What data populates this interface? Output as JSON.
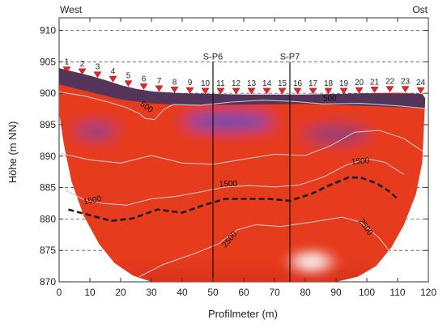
{
  "chart_data": {
    "type": "heatmap",
    "xlabel": "Profilmeter (m)",
    "ylabel": "Höhe (m NN)",
    "xlim": [
      0,
      120
    ],
    "ylim": [
      870,
      912
    ],
    "x_ticks": [
      0,
      10,
      20,
      30,
      40,
      50,
      60,
      70,
      80,
      90,
      100,
      110,
      120
    ],
    "y_ticks": [
      870,
      875,
      880,
      885,
      890,
      895,
      900,
      905,
      910
    ],
    "grid": "horizontal dashed",
    "corner_labels": {
      "left": "West",
      "right": "Ost"
    },
    "boreholes": [
      {
        "label": "S-P6",
        "x": 50,
        "top": 905
      },
      {
        "label": "S-P7",
        "x": 75,
        "top": 905
      }
    ],
    "electrodes": {
      "labels": [
        "1",
        "2",
        "3",
        "4",
        "5",
        "6",
        "7",
        "8",
        "9",
        "10",
        "11",
        "12",
        "13",
        "14",
        "15",
        "16",
        "17",
        "18",
        "19",
        "20",
        "21",
        "22",
        "23",
        "24"
      ],
      "x": [
        2.5,
        7.5,
        12.5,
        17.5,
        22.5,
        27.5,
        32.5,
        37.5,
        42.5,
        47.5,
        52.5,
        57.5,
        62.5,
        67.5,
        72.5,
        77.5,
        82.5,
        87.5,
        92.5,
        97.5,
        102.5,
        107.5,
        112.5,
        117.5
      ],
      "y": [
        903.3,
        903.0,
        902.5,
        901.8,
        901.1,
        900.6,
        900.3,
        900.1,
        900.0,
        899.9,
        899.9,
        899.9,
        899.9,
        899.9,
        899.9,
        899.9,
        899.9,
        899.9,
        899.9,
        900.0,
        900.1,
        900.2,
        900.2,
        900.0
      ]
    },
    "contour_labels": [
      {
        "text": "500",
        "x": 28,
        "y": 897.5,
        "angle": 35
      },
      {
        "text": "500",
        "x": 88,
        "y": 898.8,
        "angle": 0
      },
      {
        "text": "1500",
        "x": 55,
        "y": 885.2,
        "angle": -3
      },
      {
        "text": "1500",
        "x": 98,
        "y": 888.8,
        "angle": -5
      },
      {
        "text": "1500",
        "x": 11,
        "y": 882.6,
        "angle": -12
      },
      {
        "text": "2500",
        "x": 56,
        "y": 876.5,
        "angle": -50
      },
      {
        "text": "2500",
        "x": 99,
        "y": 878.5,
        "angle": 55
      }
    ],
    "boundary_line": {
      "style": "dashed",
      "x": [
        3,
        10,
        17,
        24,
        32,
        40,
        47,
        54,
        60,
        68,
        75,
        82,
        88,
        94,
        98,
        103,
        107,
        110
      ],
      "y": [
        881.5,
        880.6,
        879.7,
        880.1,
        881.5,
        881.0,
        882.2,
        883.2,
        883.2,
        883.2,
        882.9,
        884.0,
        885.4,
        886.6,
        886.6,
        885.7,
        884.5,
        883.2
      ]
    }
  }
}
